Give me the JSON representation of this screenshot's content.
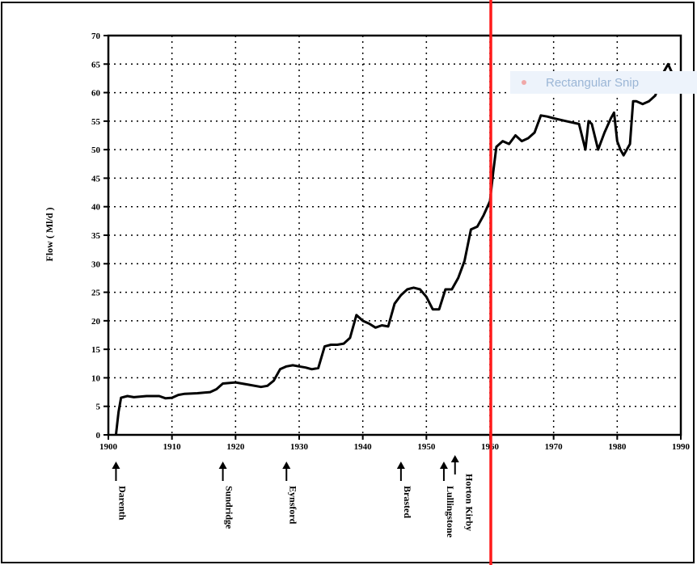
{
  "chart_data": {
    "type": "line",
    "title": "",
    "xlabel": "",
    "ylabel": "Flow ( Ml/d )",
    "xlim": [
      1900,
      1990
    ],
    "ylim": [
      0,
      70
    ],
    "x_ticks": [
      1900,
      1910,
      1920,
      1930,
      1940,
      1950,
      1960,
      1970,
      1980,
      1990
    ],
    "y_ticks": [
      0,
      5,
      10,
      15,
      20,
      25,
      30,
      35,
      40,
      45,
      50,
      55,
      60,
      65,
      70
    ],
    "grid": "dotted",
    "series": [
      {
        "name": "",
        "x": [
          1901.2,
          1901.6,
          1902,
          1903,
          1904,
          1906,
          1908,
          1909,
          1910,
          1911,
          1912,
          1914,
          1916,
          1917,
          1918,
          1920,
          1922,
          1924,
          1925,
          1926,
          1927,
          1928,
          1929,
          1930,
          1931,
          1932,
          1933,
          1934,
          1935,
          1936,
          1937,
          1938,
          1939,
          1940,
          1941,
          1942,
          1943,
          1944,
          1945,
          1946,
          1947,
          1948,
          1949,
          1950,
          1951,
          1952,
          1953,
          1954,
          1955,
          1956,
          1957,
          1958,
          1959,
          1960,
          1960.5,
          1961,
          1962,
          1963,
          1964,
          1965,
          1966,
          1967,
          1968,
          1969,
          1970,
          1972,
          1974,
          1975,
          1975.5,
          1976,
          1977,
          1978,
          1979,
          1979.5,
          1980,
          1980.5,
          1981,
          1982,
          1982.5,
          1983,
          1984,
          1985,
          1986,
          1987,
          1988,
          1989,
          1990
        ],
        "y": [
          0,
          4,
          6.5,
          6.8,
          6.6,
          6.8,
          6.8,
          6.4,
          6.5,
          7,
          7.2,
          7.3,
          7.5,
          8,
          9,
          9.2,
          8.8,
          8.4,
          8.6,
          9.5,
          11.5,
          12,
          12.2,
          12,
          11.8,
          11.5,
          11.7,
          15.5,
          15.8,
          15.8,
          16,
          17,
          21,
          20,
          19.5,
          18.8,
          19.2,
          19,
          23,
          24.5,
          25.5,
          25.8,
          25.5,
          24.2,
          22,
          22,
          25.5,
          25.5,
          27.5,
          30.5,
          36,
          36.5,
          38.5,
          41,
          46,
          50.5,
          51.5,
          51,
          52.5,
          51.5,
          52,
          53,
          56,
          55.8,
          55.5,
          55,
          54.5,
          50,
          55,
          54.5,
          50,
          53,
          55.5,
          56.5,
          51.5,
          50,
          49,
          51,
          58.5,
          58.5,
          58,
          58.5,
          59.5,
          63,
          65,
          62.5,
          61.5
        ]
      }
    ],
    "annotations": [
      {
        "text": "Darenth",
        "x": 1901.2
      },
      {
        "text": "Sundridge",
        "x": 1918
      },
      {
        "text": "Eynsford",
        "x": 1928
      },
      {
        "text": "Brasted",
        "x": 1946
      },
      {
        "text": "Lullingstone",
        "x": 1953
      },
      {
        "text": "Horton Kirby",
        "x": 1954.5
      }
    ],
    "marker_line": {
      "x": 1960,
      "color": "#ff1a1a"
    }
  },
  "overlay_badge": {
    "label": "Rectangular Snip"
  }
}
